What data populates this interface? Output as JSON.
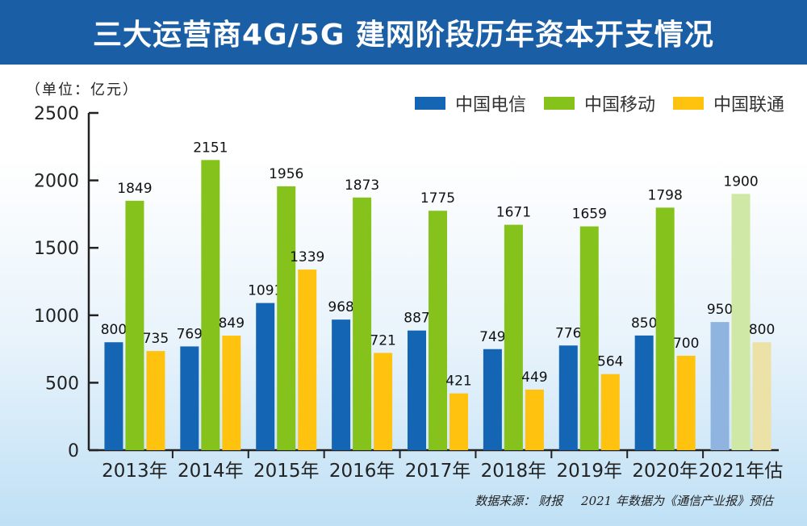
{
  "title": "三大运营商4G/5G 建网阶段历年资本开支情况",
  "unit_label": "（单位：亿元）",
  "source": {
    "label": "数据来源：",
    "text": "财报",
    "note": "2021 年数据为《通信产业报》预估"
  },
  "colors": {
    "title_bg": "#1a5fa6",
    "telecom": "#1565b5",
    "mobile": "#86c21c",
    "unicom": "#ffc20e",
    "telecom_estimate": "#8fb4e0",
    "mobile_estimate": "#cfe8a6",
    "unicom_estimate": "#ece2a8"
  },
  "chart_data": {
    "type": "bar",
    "title": "三大运营商4G/5G 建网阶段历年资本开支情况",
    "ylabel": "（单位：亿元）",
    "ylim": [
      0,
      2500
    ],
    "yticks": [
      0,
      500,
      1000,
      1500,
      2000,
      2500
    ],
    "grid": false,
    "legend_position": "top-right",
    "categories": [
      "2013年",
      "2014年",
      "2015年",
      "2016年",
      "2017年",
      "2018年",
      "2019年",
      "2020年",
      "2021年估"
    ],
    "estimated_category": "2021年估",
    "series": [
      {
        "name": "中国电信",
        "values": [
          800,
          769,
          1091,
          968,
          887,
          749,
          776,
          850,
          950
        ]
      },
      {
        "name": "中国移动",
        "values": [
          1849,
          2151,
          1956,
          1873,
          1775,
          1671,
          1659,
          1798,
          1900
        ]
      },
      {
        "name": "中国联通",
        "values": [
          735,
          849,
          1339,
          721,
          421,
          449,
          564,
          700,
          800
        ]
      }
    ]
  }
}
